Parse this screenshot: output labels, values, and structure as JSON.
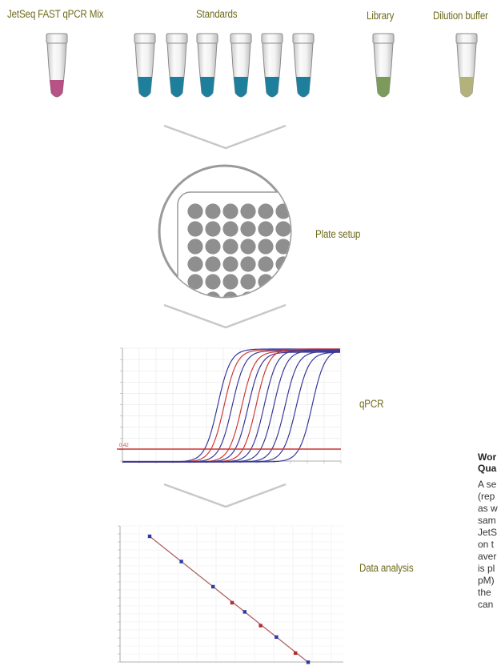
{
  "labels": {
    "mix": "JetSeq FAST qPCR Mix",
    "standards": "Standards",
    "library": "Library",
    "dilution": "Dilution buffer",
    "plate": "Plate setup",
    "qpcr": "qPCR",
    "analysis": "Data analysis"
  },
  "qpcr_threshold_label": "0.42",
  "side_text": {
    "heading": [
      "Wor",
      "Qua"
    ],
    "lines": [
      "A se",
      "(rep",
      "as w",
      "sam",
      "JetS",
      "on t",
      "aver",
      "is pl",
      "pM)",
      "the",
      "can"
    ]
  },
  "colors": {
    "label": "#6f6b1c",
    "tube_mix": "#b0407a",
    "tube_standard": "#1e7f9c",
    "tube_library": "#7c9a5c",
    "tube_dilution": "#b2b27a",
    "curve_blue": "#3a3a9a",
    "curve_red": "#cc3a3a",
    "plate_well": "#8f8f8f"
  },
  "icons": [
    "tube-icon",
    "chevron-down-icon",
    "plate-96-well-icon"
  ],
  "chart_data": [
    {
      "type": "line",
      "name": "qpcr-amplification-curves",
      "threshold": 0.42
    },
    {
      "type": "scatter",
      "name": "standard-curve",
      "points": [
        {
          "series": "standard",
          "x": 0,
          "y": 10
        },
        {
          "series": "standard",
          "x": 1,
          "y": 8.9
        },
        {
          "series": "standard",
          "x": 2,
          "y": 7.8
        },
        {
          "series": "sample",
          "x": 2.6,
          "y": 7.1
        },
        {
          "series": "standard",
          "x": 3,
          "y": 6.7
        },
        {
          "series": "sample",
          "x": 3.5,
          "y": 6.1
        },
        {
          "series": "standard",
          "x": 4,
          "y": 5.6
        },
        {
          "series": "sample",
          "x": 4.6,
          "y": 4.9
        },
        {
          "series": "standard",
          "x": 5,
          "y": 4.5
        }
      ]
    }
  ]
}
